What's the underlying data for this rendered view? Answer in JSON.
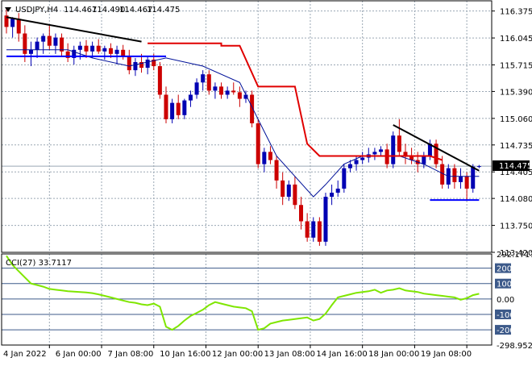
{
  "chart_data": [
    {
      "type": "candlestick",
      "header": {
        "symbol": "USDJPY,H4",
        "open": "114.467",
        "high": "114.490",
        "low": "114.467",
        "close": "114.475"
      },
      "last_price_label": "114.475",
      "last_price": 114.475,
      "ylim": [
        113.42,
        116.5
      ],
      "y_ticks": [
        "116.375",
        "116.045",
        "115.715",
        "115.390",
        "115.060",
        "114.735",
        "114.405",
        "114.080",
        "113.750",
        "113.420"
      ],
      "x_ticks": [
        "4 Jan 2022",
        "6 Jan 00:00",
        "7 Jan 08:00",
        "10 Jan 16:00",
        "12 Jan 00:00",
        "13 Jan 08:00",
        "14 Jan 16:00",
        "18 Jan 00:00",
        "19 Jan 08:00"
      ],
      "candles": [
        [
          116.32,
          116.4,
          116.1,
          116.18
        ],
        [
          116.18,
          116.3,
          116.05,
          116.28
        ],
        [
          116.28,
          116.35,
          116.0,
          116.1
        ],
        [
          116.1,
          116.2,
          115.75,
          115.85
        ],
        [
          115.85,
          116.0,
          115.7,
          115.9
        ],
        [
          115.9,
          116.05,
          115.8,
          116.0
        ],
        [
          116.0,
          116.1,
          115.85,
          116.07
        ],
        [
          116.07,
          116.2,
          115.9,
          115.95
        ],
        [
          115.95,
          116.1,
          115.85,
          116.05
        ],
        [
          116.05,
          116.1,
          115.82,
          115.88
        ],
        [
          115.88,
          115.98,
          115.75,
          115.8
        ],
        [
          115.8,
          115.95,
          115.72,
          115.9
        ],
        [
          115.9,
          116.0,
          115.78,
          115.95
        ],
        [
          115.95,
          116.02,
          115.8,
          115.88
        ],
        [
          115.88,
          116.0,
          115.8,
          115.95
        ],
        [
          115.95,
          116.03,
          115.85,
          115.88
        ],
        [
          115.88,
          115.95,
          115.78,
          115.92
        ],
        [
          115.92,
          115.98,
          115.8,
          115.85
        ],
        [
          115.85,
          115.95,
          115.72,
          115.9
        ],
        [
          115.9,
          115.96,
          115.78,
          115.82
        ],
        [
          115.82,
          115.9,
          115.6,
          115.65
        ],
        [
          115.65,
          115.8,
          115.58,
          115.75
        ],
        [
          115.75,
          115.85,
          115.62,
          115.68
        ],
        [
          115.68,
          115.82,
          115.6,
          115.78
        ],
        [
          115.78,
          115.85,
          115.65,
          115.7
        ],
        [
          115.7,
          115.75,
          115.3,
          115.35
        ],
        [
          115.35,
          115.45,
          115.0,
          115.05
        ],
        [
          115.05,
          115.3,
          115.0,
          115.25
        ],
        [
          115.25,
          115.35,
          115.05,
          115.1
        ],
        [
          115.1,
          115.3,
          115.05,
          115.28
        ],
        [
          115.28,
          115.4,
          115.2,
          115.35
        ],
        [
          115.35,
          115.55,
          115.3,
          115.5
        ],
        [
          115.5,
          115.65,
          115.4,
          115.6
        ],
        [
          115.6,
          115.65,
          115.35,
          115.4
        ],
        [
          115.4,
          115.5,
          115.3,
          115.45
        ],
        [
          115.45,
          115.5,
          115.3,
          115.35
        ],
        [
          115.35,
          115.45,
          115.3,
          115.4
        ],
        [
          115.4,
          115.5,
          115.35,
          115.38
        ],
        [
          115.38,
          115.45,
          115.2,
          115.3
        ],
        [
          115.3,
          115.4,
          115.25,
          115.35
        ],
        [
          115.35,
          115.4,
          114.95,
          115.0
        ],
        [
          115.0,
          115.05,
          114.45,
          114.5
        ],
        [
          114.5,
          114.7,
          114.4,
          114.65
        ],
        [
          114.65,
          114.72,
          114.5,
          114.55
        ],
        [
          114.55,
          114.6,
          114.2,
          114.3
        ],
        [
          114.3,
          114.4,
          114.0,
          114.1
        ],
        [
          114.1,
          114.3,
          114.05,
          114.25
        ],
        [
          114.25,
          114.35,
          113.95,
          114.0
        ],
        [
          114.0,
          114.1,
          113.7,
          113.8
        ],
        [
          113.8,
          113.9,
          113.55,
          113.6
        ],
        [
          113.6,
          113.85,
          113.55,
          113.8
        ],
        [
          113.8,
          113.85,
          113.5,
          113.55
        ],
        [
          113.55,
          114.15,
          113.5,
          114.1
        ],
        [
          114.1,
          114.25,
          114.0,
          114.15
        ],
        [
          114.15,
          114.3,
          114.1,
          114.2
        ],
        [
          114.2,
          114.5,
          114.15,
          114.45
        ],
        [
          114.45,
          114.55,
          114.4,
          114.5
        ],
        [
          114.5,
          114.6,
          114.42,
          114.55
        ],
        [
          114.55,
          114.65,
          114.5,
          114.58
        ],
        [
          114.58,
          114.7,
          114.52,
          114.62
        ],
        [
          114.62,
          114.7,
          114.55,
          114.65
        ],
        [
          114.65,
          114.72,
          114.6,
          114.68
        ],
        [
          114.68,
          114.75,
          114.45,
          114.5
        ],
        [
          114.5,
          114.9,
          114.45,
          114.85
        ],
        [
          114.85,
          115.05,
          114.6,
          114.65
        ],
        [
          114.65,
          114.75,
          114.5,
          114.6
        ],
        [
          114.6,
          114.7,
          114.5,
          114.55
        ],
        [
          114.55,
          114.65,
          114.4,
          114.5
        ],
        [
          114.5,
          114.65,
          114.45,
          114.6
        ],
        [
          114.6,
          114.8,
          114.55,
          114.75
        ],
        [
          114.75,
          114.8,
          114.45,
          114.5
        ],
        [
          114.5,
          114.6,
          114.2,
          114.25
        ],
        [
          114.25,
          114.5,
          114.2,
          114.45
        ],
        [
          114.45,
          114.5,
          114.2,
          114.28
        ],
        [
          114.28,
          114.45,
          114.2,
          114.35
        ],
        [
          114.35,
          114.4,
          114.05,
          114.2
        ],
        [
          114.2,
          114.5,
          114.15,
          114.47
        ],
        [
          114.47,
          114.49,
          114.45,
          114.475
        ]
      ],
      "channel_line": [
        [
          0,
          115.9
        ],
        [
          10,
          115.9
        ],
        [
          14,
          115.8
        ],
        [
          20,
          115.7
        ],
        [
          26,
          115.8
        ],
        [
          32,
          115.7
        ],
        [
          38,
          115.5
        ],
        [
          40,
          115.2
        ],
        [
          42,
          114.9
        ],
        [
          44,
          114.6
        ],
        [
          50,
          114.1
        ],
        [
          52,
          114.25
        ],
        [
          55,
          114.5
        ],
        [
          58,
          114.6
        ],
        [
          64,
          114.6
        ],
        [
          68,
          114.5
        ],
        [
          72,
          114.35
        ],
        [
          77,
          114.35
        ]
      ],
      "upper_stop_line": [
        [
          23,
          115.98
        ],
        [
          35,
          115.98
        ],
        [
          35,
          115.95
        ],
        [
          38,
          115.95
        ],
        [
          41,
          115.45
        ],
        [
          47,
          115.45
        ],
        [
          49,
          114.75
        ],
        [
          51,
          114.6
        ],
        [
          62,
          114.6
        ],
        [
          69,
          114.6
        ],
        [
          71,
          114.55
        ]
      ],
      "annotations": [
        {
          "kind": "trendline",
          "color": "#000000",
          "from": [
            0,
            116.3
          ],
          "to": [
            22,
            116.0
          ]
        },
        {
          "kind": "hline",
          "color": "#0000ff",
          "from": [
            0,
            115.82
          ],
          "to": [
            26,
            115.82
          ]
        },
        {
          "kind": "trendline",
          "color": "#000000",
          "from": [
            63,
            114.98
          ],
          "to": [
            77,
            114.42
          ]
        },
        {
          "kind": "hline",
          "color": "#0000ff",
          "from": [
            69,
            114.06
          ],
          "to": [
            77,
            114.06
          ]
        }
      ],
      "colors": {
        "bull": "#0000b3",
        "bear": "#cc0000",
        "channel": "#001199",
        "stop": "#e00000",
        "annotation": "#000000",
        "support": "#0000ff"
      }
    },
    {
      "type": "line",
      "title": "CCI(27) 33.7117",
      "ylim": [
        -298.9523,
        292.1717
      ],
      "y_ticks": [
        "292.1717",
        "200",
        "100",
        "0.00",
        "-100",
        "-200",
        "-298.9523"
      ],
      "levels": [
        200,
        100,
        0,
        -100,
        -200
      ],
      "line_color": "#7fe600",
      "values": [
        280,
        220,
        180,
        140,
        100,
        90,
        80,
        65,
        60,
        55,
        50,
        48,
        45,
        42,
        38,
        30,
        20,
        10,
        0,
        -10,
        -20,
        -25,
        -35,
        -40,
        -30,
        -50,
        -180,
        -200,
        -175,
        -140,
        -110,
        -90,
        -70,
        -40,
        -20,
        -30,
        -40,
        -50,
        -55,
        -60,
        -80,
        -200,
        -190,
        -160,
        -150,
        -140,
        -135,
        -130,
        -125,
        -120,
        -140,
        -130,
        -95,
        -40,
        10,
        20,
        30,
        40,
        45,
        50,
        60,
        40,
        55,
        60,
        70,
        55,
        50,
        45,
        35,
        30,
        25,
        20,
        15,
        10,
        -5,
        5,
        25,
        33.7117
      ],
      "colors": {
        "line": "#7fe600",
        "level_fill": "#3d5a8a",
        "last_fill": "#3d5a8a"
      }
    }
  ]
}
